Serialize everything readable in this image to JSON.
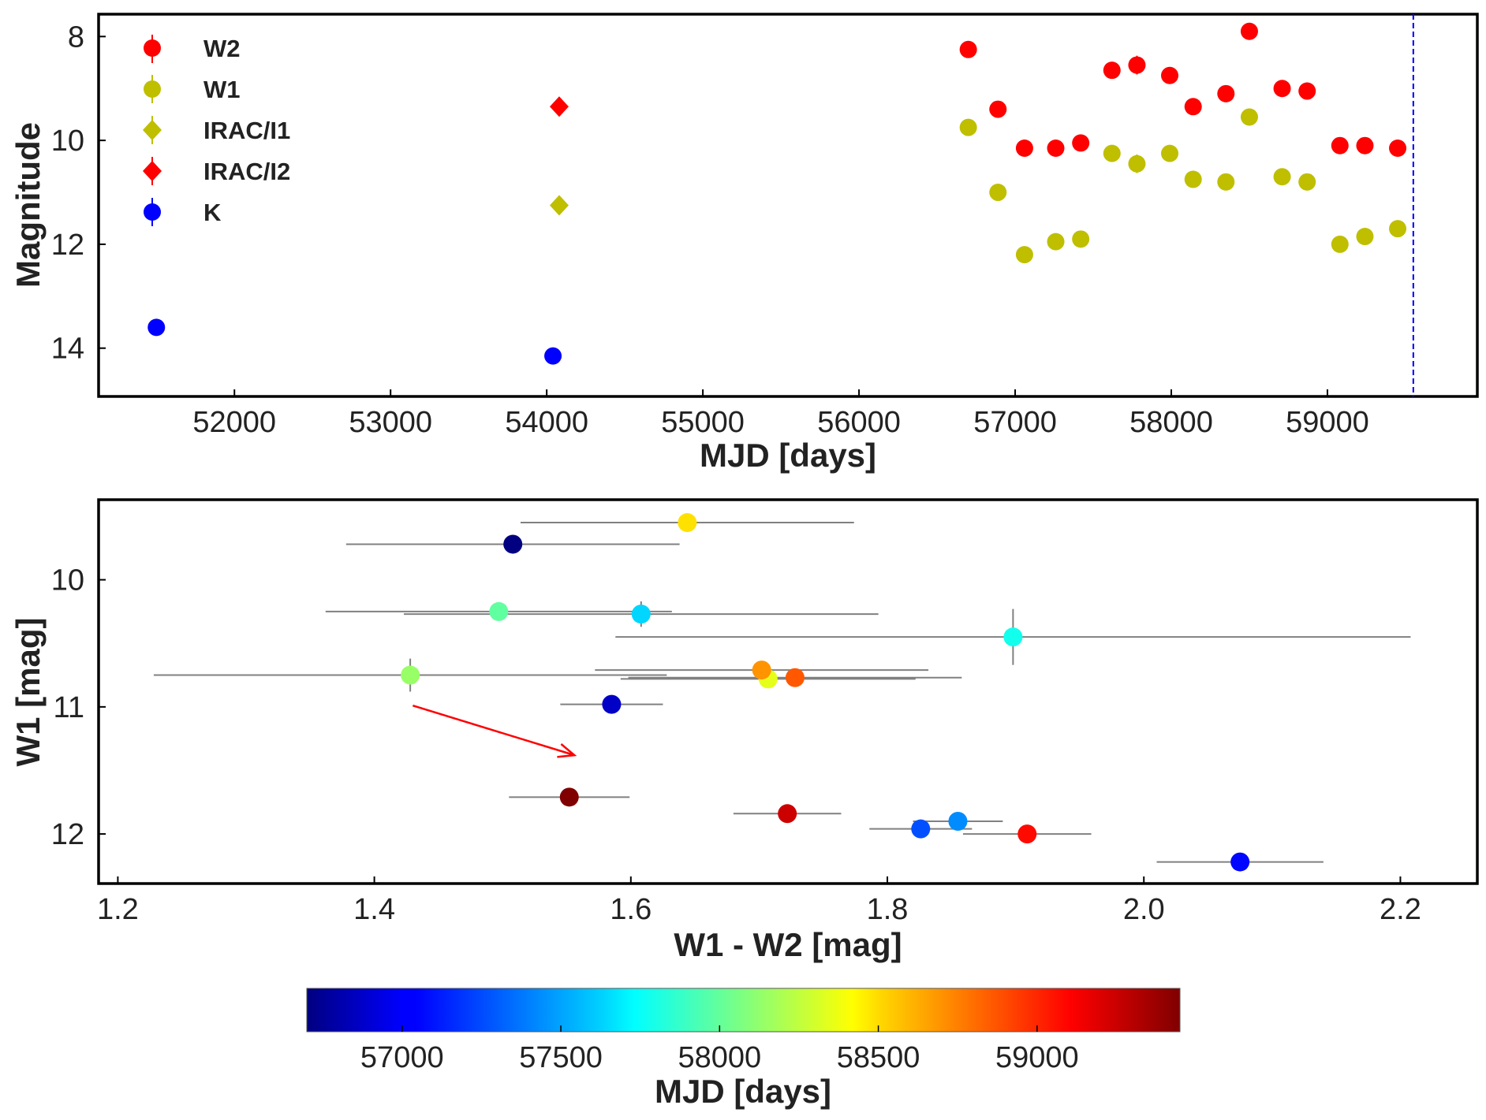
{
  "chart_data": [
    {
      "type": "scatter",
      "title": "",
      "xlabel": "MJD [days]",
      "ylabel": "Magnitude",
      "xlim": [
        51130,
        59960
      ],
      "ylim": [
        14.93,
        7.57
      ],
      "y_inverted": true,
      "grid": false,
      "x_ticks": [
        52000,
        53000,
        54000,
        55000,
        56000,
        57000,
        58000,
        59000
      ],
      "y_ticks": [
        8,
        10,
        12,
        14
      ],
      "legend": {
        "position": "top-left",
        "entries": [
          {
            "label": "W2",
            "marker": "circle",
            "color": "#ff0000"
          },
          {
            "label": "W1",
            "marker": "circle",
            "color": "#bfbf00"
          },
          {
            "label": "IRAC/I1",
            "marker": "diamond",
            "color": "#bfbf00"
          },
          {
            "label": "IRAC/I2",
            "marker": "diamond",
            "color": "#ff0000"
          },
          {
            "label": "K",
            "marker": "circle",
            "color": "#0000ff"
          }
        ]
      },
      "vline": {
        "x": 59550,
        "color": "#0000ff",
        "style": "dashed"
      },
      "series": [
        {
          "name": "W2",
          "marker": "circle",
          "color": "#ff0000",
          "x": [
            56700,
            56890,
            57060,
            57260,
            57420,
            57620,
            57780,
            57990,
            58140,
            58350,
            58500,
            58710,
            58870,
            59080,
            59240,
            59450
          ],
          "y": [
            8.25,
            9.4,
            10.15,
            10.15,
            10.05,
            8.65,
            8.55,
            8.75,
            9.35,
            9.1,
            7.9,
            9.0,
            9.05,
            10.1,
            10.1,
            10.15
          ],
          "yerr": [
            0.05,
            0.05,
            0.05,
            0.05,
            0.05,
            0.05,
            0.18,
            0.05,
            0.05,
            0.05,
            0.05,
            0.05,
            0.05,
            0.05,
            0.05,
            0.05
          ]
        },
        {
          "name": "W1",
          "marker": "circle",
          "color": "#bfbf00",
          "x": [
            56700,
            56890,
            57060,
            57260,
            57420,
            57620,
            57780,
            57990,
            58140,
            58350,
            58500,
            58710,
            58870,
            59080,
            59240,
            59450
          ],
          "y": [
            9.75,
            11.0,
            12.2,
            11.95,
            11.9,
            10.25,
            10.45,
            10.25,
            10.75,
            10.8,
            9.55,
            10.7,
            10.8,
            12.0,
            11.85,
            11.7
          ],
          "yerr": [
            0.05,
            0.05,
            0.05,
            0.05,
            0.05,
            0.05,
            0.18,
            0.05,
            0.05,
            0.05,
            0.05,
            0.05,
            0.05,
            0.05,
            0.05,
            0.05
          ]
        },
        {
          "name": "IRAC/I1",
          "marker": "diamond",
          "color": "#bfbf00",
          "x": [
            54080
          ],
          "y": [
            11.25
          ],
          "yerr": [
            0.05
          ]
        },
        {
          "name": "IRAC/I2",
          "marker": "diamond",
          "color": "#ff0000",
          "x": [
            54080
          ],
          "y": [
            9.35
          ],
          "yerr": [
            0.05
          ]
        },
        {
          "name": "K",
          "marker": "circle",
          "color": "#0000ff",
          "x": [
            51500,
            54040
          ],
          "y": [
            13.6,
            14.15
          ],
          "yerr": [
            0.05,
            0.05
          ]
        }
      ]
    },
    {
      "type": "scatter",
      "title": "",
      "xlabel": "W1 - W2 [mag]",
      "ylabel": "W1 [mag]",
      "xlim": [
        1.185,
        2.26
      ],
      "ylim": [
        12.39,
        9.37
      ],
      "y_inverted": true,
      "grid": false,
      "x_ticks": [
        1.2,
        1.4,
        1.6,
        1.8,
        2.0,
        2.2
      ],
      "x_tick_labels": [
        "1.2",
        "1.4",
        "1.6",
        "1.8",
        "2.0",
        "2.2"
      ],
      "y_ticks": [
        10,
        11,
        12
      ],
      "colormap": "jet",
      "error_bar_color": "#808080",
      "annotation": {
        "type": "arrow",
        "color": "#ff0000",
        "from": [
          1.43,
          10.99
        ],
        "to": [
          1.556,
          11.38
        ]
      },
      "points": [
        {
          "x": 1.508,
          "y": 9.72,
          "xerr": 0.13,
          "yerr": 0.02,
          "mjd": 56700
        },
        {
          "x": 1.585,
          "y": 10.98,
          "xerr": 0.04,
          "yerr": 0.02,
          "mjd": 56890
        },
        {
          "x": 2.075,
          "y": 12.22,
          "xerr": 0.065,
          "yerr": 0.02,
          "mjd": 57060
        },
        {
          "x": 1.826,
          "y": 11.96,
          "xerr": 0.04,
          "yerr": 0.02,
          "mjd": 57260
        },
        {
          "x": 1.855,
          "y": 11.9,
          "xerr": 0.035,
          "yerr": 0.02,
          "mjd": 57420
        },
        {
          "x": 1.608,
          "y": 10.27,
          "xerr": 0.185,
          "yerr": 0.1,
          "mjd": 57620
        },
        {
          "x": 1.898,
          "y": 10.45,
          "xerr": 0.31,
          "yerr": 0.22,
          "mjd": 57780
        },
        {
          "x": 1.497,
          "y": 10.25,
          "xerr": 0.135,
          "yerr": 0.02,
          "mjd": 57990
        },
        {
          "x": 1.428,
          "y": 10.75,
          "xerr": 0.2,
          "yerr": 0.13,
          "mjd": 58140
        },
        {
          "x": 1.707,
          "y": 10.78,
          "xerr": 0.115,
          "yerr": 0.02,
          "mjd": 58350
        },
        {
          "x": 1.644,
          "y": 9.55,
          "xerr": 0.13,
          "yerr": 0.02,
          "mjd": 58500
        },
        {
          "x": 1.702,
          "y": 10.71,
          "xerr": 0.13,
          "yerr": 0.02,
          "mjd": 58710
        },
        {
          "x": 1.728,
          "y": 10.77,
          "xerr": 0.13,
          "yerr": 0.02,
          "mjd": 58870
        },
        {
          "x": 1.909,
          "y": 12.0,
          "xerr": 0.05,
          "yerr": 0.02,
          "mjd": 59080
        },
        {
          "x": 1.722,
          "y": 11.84,
          "xerr": 0.042,
          "yerr": 0.02,
          "mjd": 59240
        },
        {
          "x": 1.552,
          "y": 11.71,
          "xerr": 0.047,
          "yerr": 0.02,
          "mjd": 59450
        }
      ]
    },
    {
      "type": "colorbar",
      "label": "MJD [days]",
      "colormap": "jet",
      "range": [
        56700,
        59450
      ],
      "ticks": [
        57000,
        57500,
        58000,
        58500,
        59000
      ],
      "orientation": "horizontal"
    }
  ]
}
